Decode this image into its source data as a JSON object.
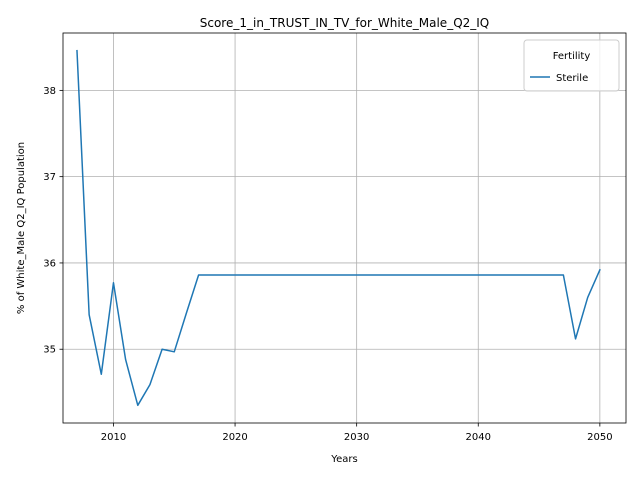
{
  "chart_data": {
    "type": "line",
    "title": "Score_1_in_TRUST_IN_TV_for_White_Male_Q2_IQ",
    "xlabel": "Years",
    "ylabel": "% of White_Male Q2_IQ Population",
    "xlim": [
      2005.85,
      2052.15
    ],
    "ylim": [
      34.145,
      38.665
    ],
    "xticks": [
      2010,
      2020,
      2030,
      2040,
      2050
    ],
    "yticks": [
      35,
      36,
      37,
      38
    ],
    "grid": true,
    "legend": {
      "title": "Fertility",
      "position": "top-right"
    },
    "series": [
      {
        "name": "Sterile",
        "color": "#1f77b4",
        "x": [
          2007,
          2008,
          2009,
          2010,
          2011,
          2012,
          2013,
          2014,
          2015,
          2016,
          2017,
          2018,
          2019,
          2020,
          2021,
          2022,
          2023,
          2024,
          2025,
          2026,
          2027,
          2028,
          2029,
          2030,
          2031,
          2032,
          2033,
          2034,
          2035,
          2036,
          2037,
          2038,
          2039,
          2040,
          2041,
          2042,
          2043,
          2044,
          2045,
          2046,
          2047,
          2048,
          2049,
          2050
        ],
        "y": [
          38.46,
          35.4,
          34.71,
          35.77,
          34.88,
          34.35,
          34.59,
          35.0,
          34.97,
          35.42,
          35.86,
          35.86,
          35.86,
          35.86,
          35.86,
          35.86,
          35.86,
          35.86,
          35.86,
          35.86,
          35.86,
          35.86,
          35.86,
          35.86,
          35.86,
          35.86,
          35.86,
          35.86,
          35.86,
          35.86,
          35.86,
          35.86,
          35.86,
          35.86,
          35.86,
          35.86,
          35.86,
          35.86,
          35.86,
          35.86,
          35.86,
          35.12,
          35.6,
          35.92
        ]
      }
    ]
  }
}
